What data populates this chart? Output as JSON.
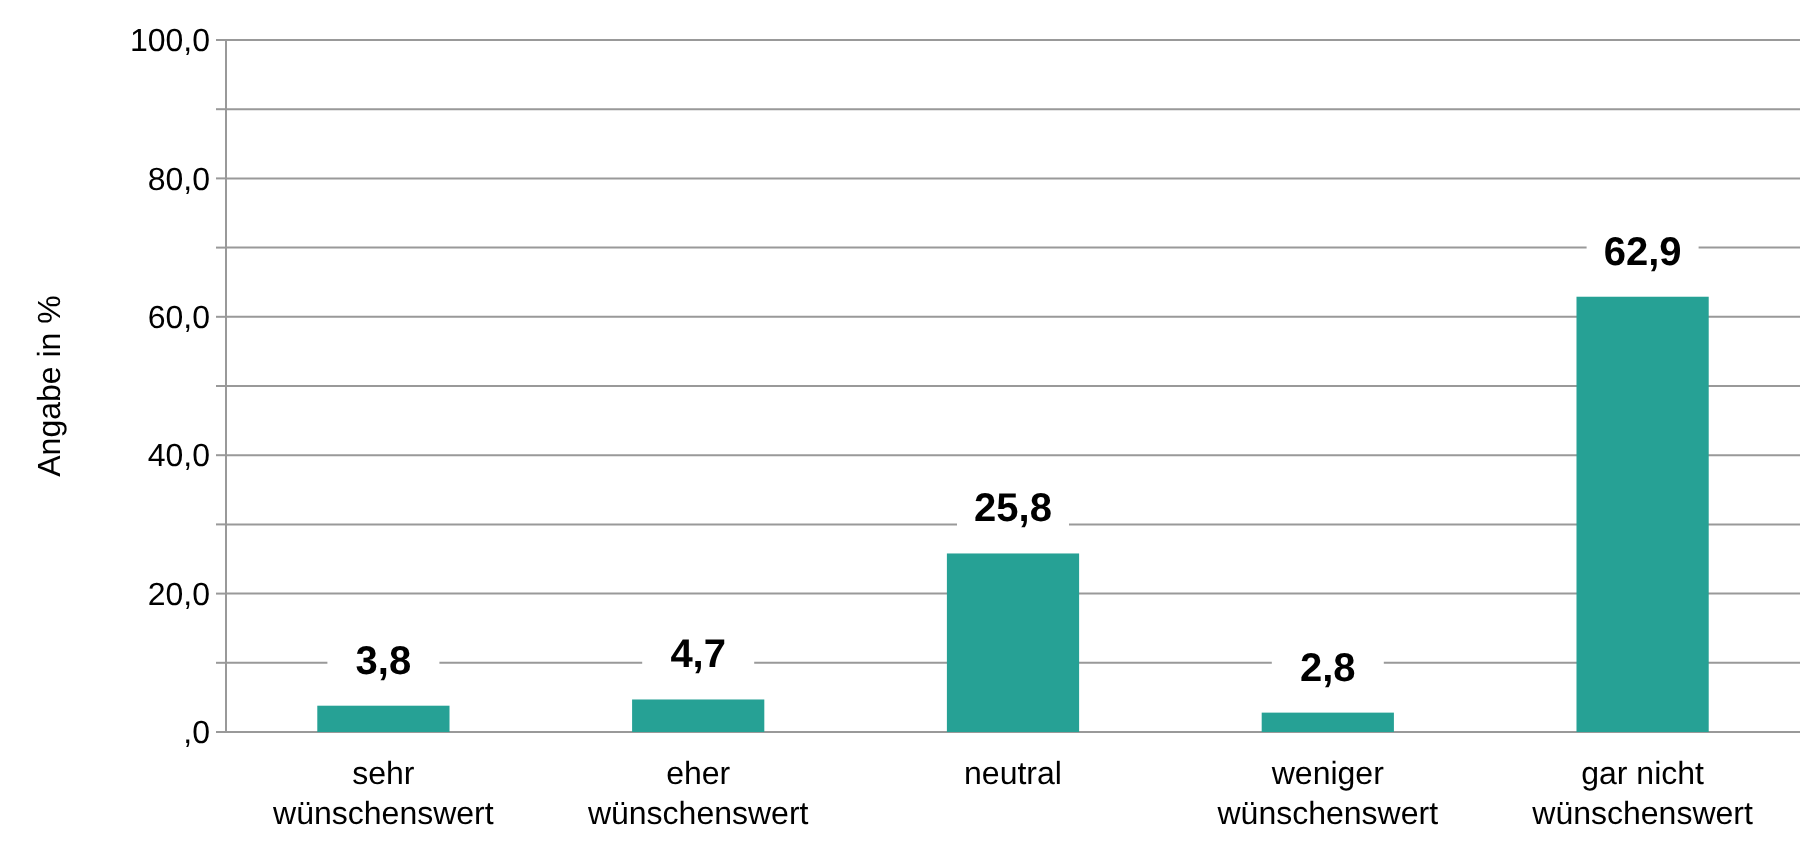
{
  "chart_data": {
    "type": "bar",
    "ylabel": "Angabe in %",
    "categories": [
      "sehr wünschenswert",
      "eher wünschenswert",
      "neutral",
      "weniger wünschenswert",
      "gar nicht wünschenswert"
    ],
    "values": [
      3.8,
      4.7,
      25.8,
      2.8,
      62.9
    ],
    "value_labels": [
      "3,8",
      "4,7",
      "25,8",
      "2,8",
      "62,9"
    ],
    "color": "#26a195",
    "ylim": [
      0,
      100
    ],
    "yticks": [
      {
        "value": 0,
        "label": ",0"
      },
      {
        "value": 10,
        "label": null
      },
      {
        "value": 20,
        "label": "20,0"
      },
      {
        "value": 30,
        "label": null
      },
      {
        "value": 40,
        "label": "40,0"
      },
      {
        "value": 50,
        "label": null
      },
      {
        "value": 60,
        "label": "60,0"
      },
      {
        "value": 70,
        "label": null
      },
      {
        "value": 80,
        "label": "80,0"
      },
      {
        "value": 90,
        "label": null
      },
      {
        "value": 100,
        "label": "100,0"
      }
    ],
    "grid": true
  }
}
